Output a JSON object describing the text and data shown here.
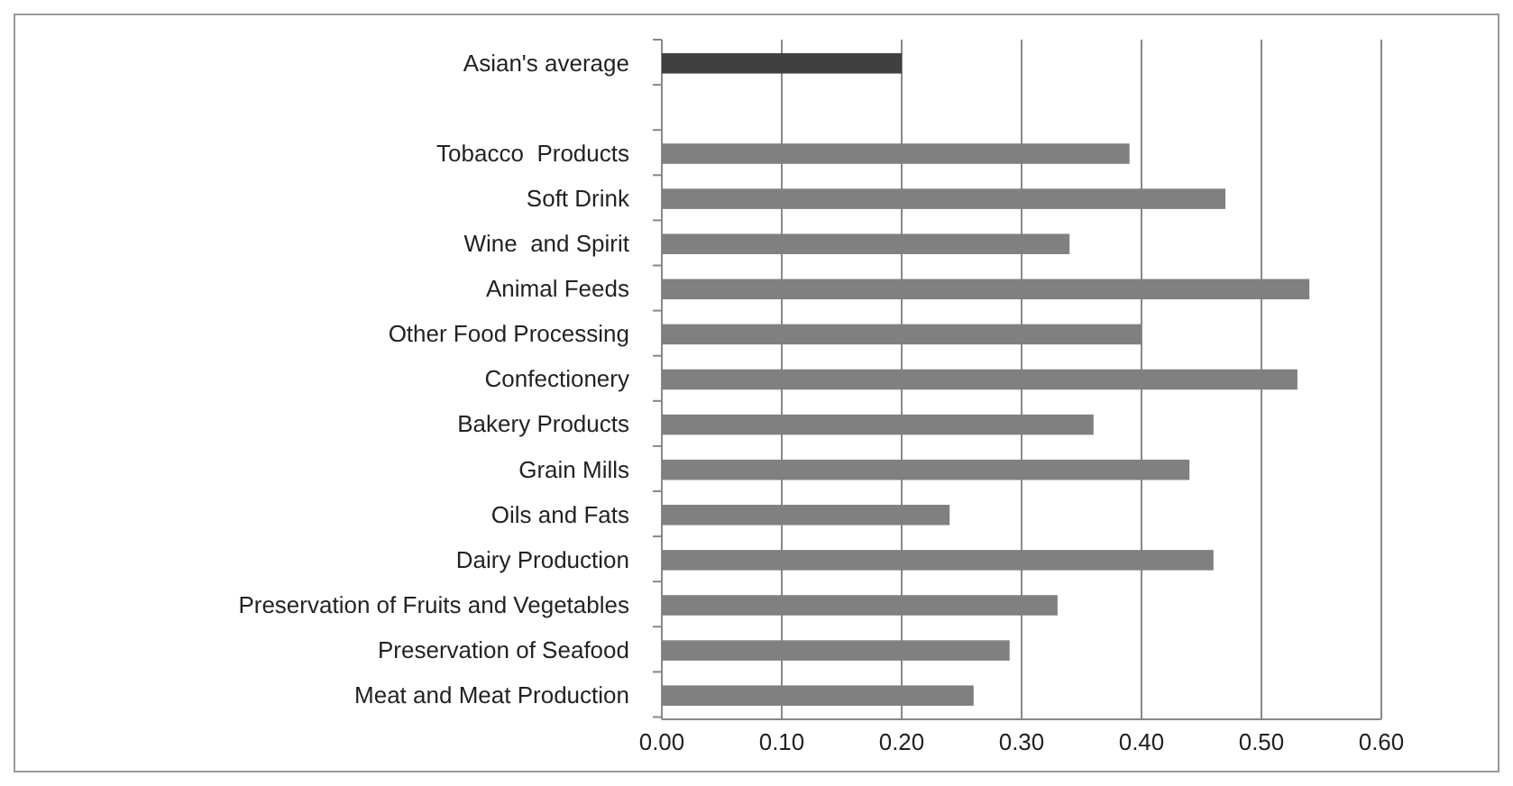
{
  "chart_data": {
    "type": "bar",
    "orientation": "horizontal",
    "categories": [
      "Asian's average",
      null,
      "Tobacco  Products",
      "Soft Drink",
      "Wine  and Spirit",
      "Animal Feeds",
      "Other Food Processing",
      "Confectionery",
      "Bakery Products",
      "Grain Mills",
      "Oils and Fats",
      "Dairy Production",
      "Preservation of Fruits and Vegetables",
      "Preservation of Seafood",
      "Meat and Meat Production"
    ],
    "values": [
      0.2,
      null,
      0.39,
      0.47,
      0.34,
      0.54,
      0.4,
      0.53,
      0.36,
      0.44,
      0.24,
      0.46,
      0.33,
      0.29,
      0.26
    ],
    "colors": [
      "#404040",
      "#808080",
      "#808080",
      "#808080",
      "#808080",
      "#808080",
      "#808080",
      "#808080",
      "#808080",
      "#808080",
      "#808080",
      "#808080",
      "#808080",
      "#808080",
      "#808080"
    ],
    "xlim": [
      0,
      0.6
    ],
    "xticks": [
      {
        "value": 0,
        "label": "0.00"
      },
      {
        "value": 0.1,
        "label": "0.10"
      },
      {
        "value": 0.2,
        "label": "0.20"
      },
      {
        "value": 0.3,
        "label": "0.30"
      },
      {
        "value": 0.4,
        "label": "0.40"
      },
      {
        "value": 0.5,
        "label": "0.50"
      },
      {
        "value": 0.6,
        "label": "0.60"
      }
    ],
    "grid": "x"
  }
}
